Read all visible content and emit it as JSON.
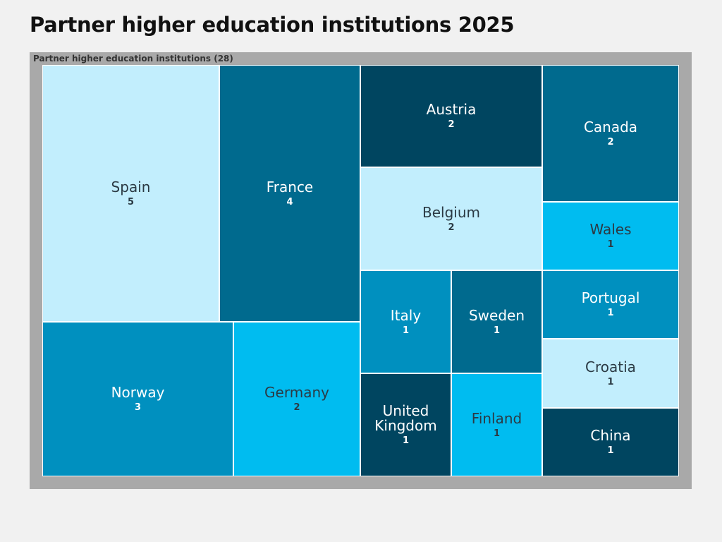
{
  "page": {
    "title": "Partner higher education institutions 2025"
  },
  "chart_data": {
    "type": "treemap",
    "title": "Partner higher education institutions 2025",
    "root_label": "Partner higher education institutions (28)",
    "total": 28,
    "items": [
      {
        "name": "Spain",
        "value": 5,
        "color": "#c2eefd",
        "text_color": "#2b3a44"
      },
      {
        "name": "France",
        "value": 4,
        "color": "#006a8e",
        "text_color": "#ffffff"
      },
      {
        "name": "Norway",
        "value": 3,
        "color": "#0090bf",
        "text_color": "#ffffff"
      },
      {
        "name": "Germany",
        "value": 2,
        "color": "#00bcf0",
        "text_color": "#2b3a44"
      },
      {
        "name": "Austria",
        "value": 2,
        "color": "#004560",
        "text_color": "#ffffff"
      },
      {
        "name": "Belgium",
        "value": 2,
        "color": "#c2eefd",
        "text_color": "#2b3a44"
      },
      {
        "name": "Canada",
        "value": 2,
        "color": "#006a8e",
        "text_color": "#ffffff"
      },
      {
        "name": "Wales",
        "value": 1,
        "color": "#00bcf0",
        "text_color": "#2b3a44"
      },
      {
        "name": "Italy",
        "value": 1,
        "color": "#0090bf",
        "text_color": "#ffffff"
      },
      {
        "name": "Sweden",
        "value": 1,
        "color": "#006a8e",
        "text_color": "#ffffff"
      },
      {
        "name": "Portugal",
        "value": 1,
        "color": "#0090bf",
        "text_color": "#ffffff"
      },
      {
        "name": "Croatia",
        "value": 1,
        "color": "#c2eefd",
        "text_color": "#2b3a44"
      },
      {
        "name": "United Kingdom",
        "value": 1,
        "color": "#004560",
        "text_color": "#ffffff"
      },
      {
        "name": "Finland",
        "value": 1,
        "color": "#00bcf0",
        "text_color": "#2b3a44"
      },
      {
        "name": "China",
        "value": 1,
        "color": "#004560",
        "text_color": "#ffffff"
      }
    ]
  }
}
